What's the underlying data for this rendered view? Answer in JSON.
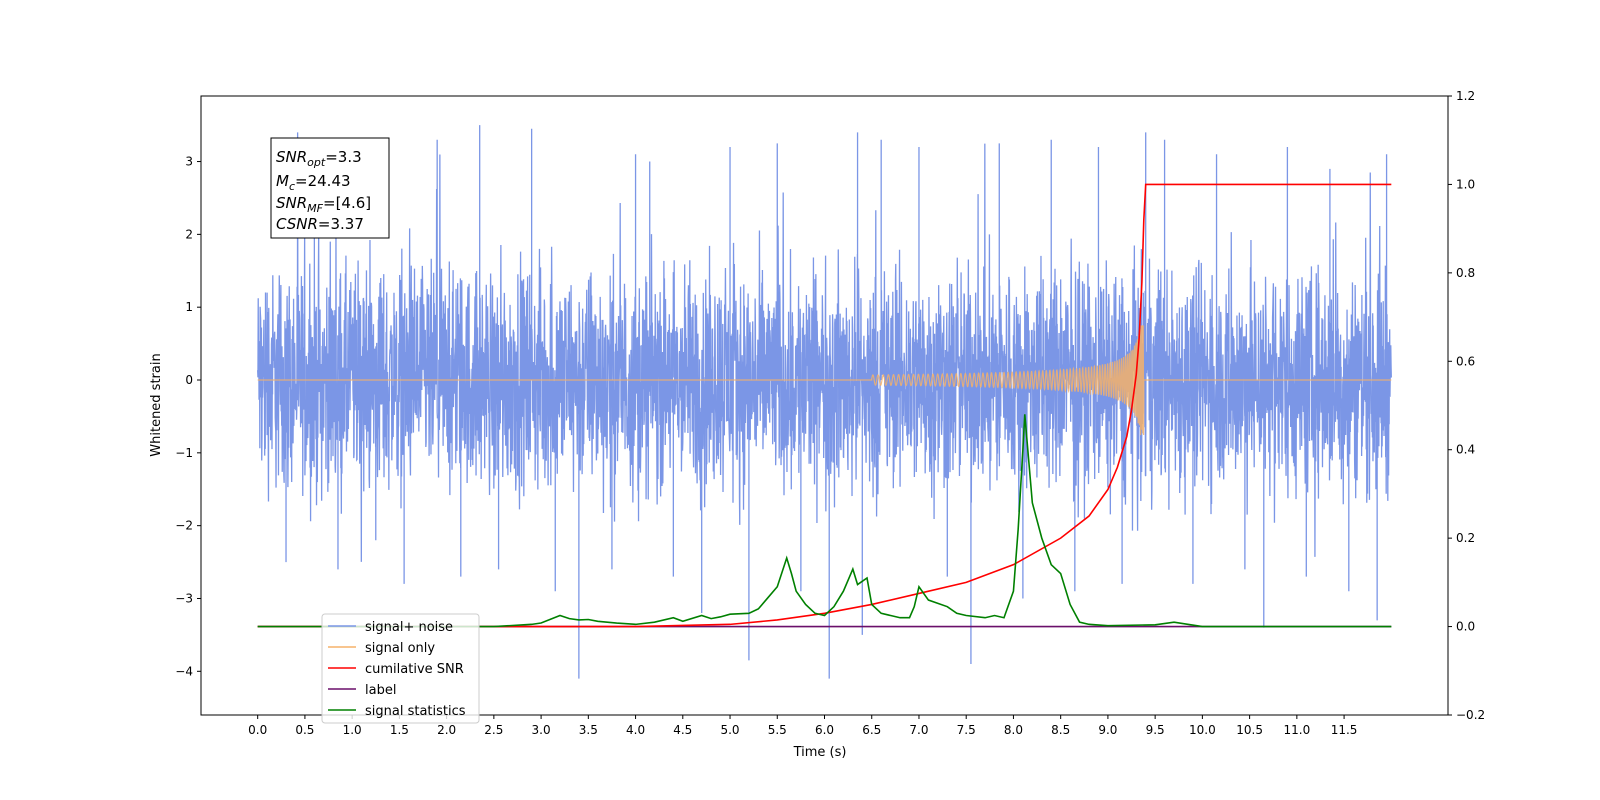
{
  "chart_data": {
    "type": "line",
    "xlabel": "Time (s)",
    "ylabel": "Whitened strain",
    "xlim": [
      -0.6,
      12.6
    ],
    "ylim": [
      -4.6,
      3.9
    ],
    "y2lim": [
      -0.2,
      1.2
    ],
    "x_ticks": [
      "0.0",
      "0.5",
      "1.0",
      "1.5",
      "2.0",
      "2.5",
      "3.0",
      "3.5",
      "4.0",
      "4.5",
      "5.0",
      "5.5",
      "6.0",
      "6.5",
      "7.0",
      "7.5",
      "8.0",
      "8.5",
      "9.0",
      "9.5",
      "10.0",
      "10.5",
      "11.0",
      "11.5"
    ],
    "y_ticks": [
      "3",
      "2",
      "1",
      "0",
      "−1",
      "−2",
      "−3",
      "−4"
    ],
    "y_tick_values": [
      3,
      2,
      1,
      0,
      -1,
      -2,
      -3,
      -4
    ],
    "y2_ticks": [
      "1.2",
      "1.0",
      "0.8",
      "0.6",
      "0.4",
      "0.2",
      "0.0",
      "−0.2"
    ],
    "y2_tick_values": [
      1.2,
      1.0,
      0.8,
      0.6,
      0.4,
      0.2,
      0.0,
      -0.2
    ],
    "grid": false,
    "annotation": {
      "snr_opt_base": "SNR",
      "snr_opt_sub": "opt",
      "snr_opt_value": "=3.3",
      "mc_base": "M",
      "mc_sub": "c",
      "mc_value": "=24.43",
      "snr_mf_base": "SNR",
      "snr_mf_sub": "MF",
      "snr_mf_value": "=[4.6]",
      "csnr_base": "CSNR",
      "csnr_value": "=3.37"
    },
    "legend": {
      "placement": "lower-left",
      "entries": [
        {
          "label": "signal+ noise",
          "color": "#7b96e6"
        },
        {
          "label": "signal only",
          "color": "#f5b26a"
        },
        {
          "label": "cumilative SNR",
          "color": "#ff0000"
        },
        {
          "label": "label",
          "color": "#6a0f6a"
        },
        {
          "label": "signal statistics",
          "color": "#008000"
        }
      ]
    },
    "series": [
      {
        "name": "signal+ noise",
        "axis": "left",
        "color": "#7b96e6",
        "x_range": [
          0.0,
          12.0
        ],
        "envelope_lower": -1.6,
        "envelope_upper": 1.6,
        "spikes": [
          {
            "x": 0.1,
            "y": 1.2
          },
          {
            "x": 0.3,
            "y": -2.5
          },
          {
            "x": 0.6,
            "y": 2.3
          },
          {
            "x": 0.85,
            "y": -2.6
          },
          {
            "x": 1.25,
            "y": -2.2
          },
          {
            "x": 1.55,
            "y": -2.8
          },
          {
            "x": 1.9,
            "y": 3.3
          },
          {
            "x": 2.15,
            "y": -2.7
          },
          {
            "x": 2.35,
            "y": 3.5
          },
          {
            "x": 2.55,
            "y": -2.6
          },
          {
            "x": 2.9,
            "y": 3.45
          },
          {
            "x": 3.15,
            "y": -2.9
          },
          {
            "x": 3.4,
            "y": -4.1
          },
          {
            "x": 3.75,
            "y": -2.6
          },
          {
            "x": 4.0,
            "y": 3.1
          },
          {
            "x": 4.15,
            "y": 3.0
          },
          {
            "x": 4.4,
            "y": -2.7
          },
          {
            "x": 4.7,
            "y": -3.2
          },
          {
            "x": 5.0,
            "y": 3.2
          },
          {
            "x": 5.2,
            "y": -3.85
          },
          {
            "x": 5.5,
            "y": 3.25
          },
          {
            "x": 5.75,
            "y": -2.9
          },
          {
            "x": 6.05,
            "y": -4.1
          },
          {
            "x": 6.35,
            "y": 3.4
          },
          {
            "x": 6.4,
            "y": -3.5
          },
          {
            "x": 6.6,
            "y": 3.3
          },
          {
            "x": 7.0,
            "y": 3.2
          },
          {
            "x": 7.3,
            "y": -2.7
          },
          {
            "x": 7.55,
            "y": -3.9
          },
          {
            "x": 7.85,
            "y": 3.25
          },
          {
            "x": 8.1,
            "y": -3.0
          },
          {
            "x": 8.4,
            "y": 3.3
          },
          {
            "x": 8.65,
            "y": -2.9
          },
          {
            "x": 8.9,
            "y": 3.2
          },
          {
            "x": 9.15,
            "y": -2.8
          },
          {
            "x": 9.4,
            "y": 3.4
          },
          {
            "x": 9.6,
            "y": 3.3
          },
          {
            "x": 9.9,
            "y": -2.8
          },
          {
            "x": 10.15,
            "y": 3.1
          },
          {
            "x": 10.45,
            "y": -2.6
          },
          {
            "x": 10.65,
            "y": -3.4
          },
          {
            "x": 10.9,
            "y": 3.2
          },
          {
            "x": 11.1,
            "y": -2.7
          },
          {
            "x": 11.35,
            "y": 2.9
          },
          {
            "x": 11.55,
            "y": -2.9
          },
          {
            "x": 11.85,
            "y": -3.3
          },
          {
            "x": 11.95,
            "y": 3.1
          }
        ]
      },
      {
        "name": "signal only",
        "axis": "left",
        "color": "#f5b26a",
        "x_range": [
          0.0,
          12.0
        ],
        "chirp_start": 6.5,
        "chirp_end": 9.38,
        "peak_amplitude_upper": 0.75,
        "peak_amplitude_lower": -0.8
      },
      {
        "name": "cumilative SNR",
        "axis": "right",
        "color": "#ff0000",
        "x": [
          0.0,
          4.0,
          5.0,
          5.5,
          6.0,
          6.5,
          7.0,
          7.5,
          8.0,
          8.5,
          8.8,
          9.0,
          9.1,
          9.2,
          9.25,
          9.3,
          9.33,
          9.36,
          9.38,
          9.4,
          10.0,
          11.0,
          12.0
        ],
        "values": [
          0.0,
          0.0,
          0.005,
          0.015,
          0.03,
          0.05,
          0.075,
          0.1,
          0.14,
          0.2,
          0.25,
          0.31,
          0.36,
          0.43,
          0.49,
          0.57,
          0.65,
          0.78,
          0.92,
          1.0,
          1.0,
          1.0,
          1.0
        ]
      },
      {
        "name": "label",
        "axis": "right",
        "color": "#6a0f6a",
        "x": [
          0.0,
          12.0
        ],
        "values": [
          0.0,
          0.0
        ]
      },
      {
        "name": "signal statistics",
        "axis": "right",
        "color": "#008000",
        "x": [
          0.0,
          2.5,
          2.9,
          3.0,
          3.2,
          3.3,
          3.4,
          3.5,
          3.6,
          3.8,
          4.0,
          4.2,
          4.4,
          4.5,
          4.7,
          4.8,
          4.9,
          5.0,
          5.2,
          5.3,
          5.4,
          5.5,
          5.6,
          5.65,
          5.7,
          5.8,
          5.9,
          6.0,
          6.1,
          6.2,
          6.3,
          6.35,
          6.45,
          6.5,
          6.6,
          6.7,
          6.8,
          6.9,
          6.95,
          7.0,
          7.1,
          7.3,
          7.4,
          7.5,
          7.7,
          7.8,
          7.9,
          8.0,
          8.05,
          8.1,
          8.12,
          8.2,
          8.3,
          8.4,
          8.5,
          8.6,
          8.7,
          8.8,
          9.0,
          9.5,
          9.7,
          10.0,
          12.0
        ],
        "values": [
          0.0,
          0.0,
          0.005,
          0.008,
          0.025,
          0.018,
          0.015,
          0.016,
          0.012,
          0.008,
          0.005,
          0.01,
          0.02,
          0.012,
          0.025,
          0.018,
          0.022,
          0.028,
          0.03,
          0.04,
          0.065,
          0.09,
          0.155,
          0.12,
          0.08,
          0.05,
          0.03,
          0.025,
          0.045,
          0.08,
          0.13,
          0.095,
          0.11,
          0.05,
          0.03,
          0.025,
          0.02,
          0.02,
          0.045,
          0.09,
          0.06,
          0.045,
          0.03,
          0.025,
          0.02,
          0.025,
          0.02,
          0.08,
          0.22,
          0.4,
          0.48,
          0.28,
          0.2,
          0.14,
          0.12,
          0.05,
          0.01,
          0.005,
          0.002,
          0.004,
          0.01,
          0.0,
          0.0
        ]
      }
    ]
  }
}
